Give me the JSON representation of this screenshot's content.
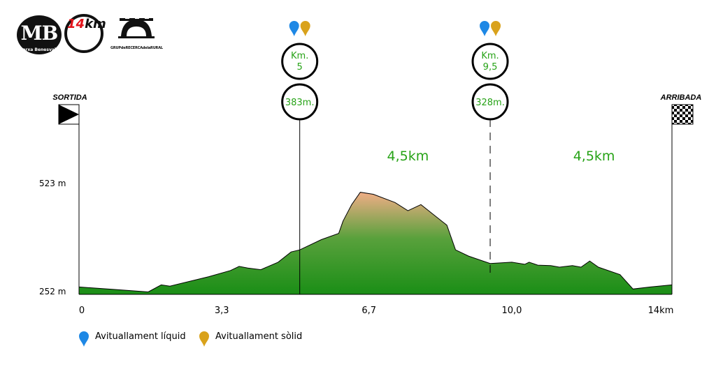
{
  "logos": {
    "mb_initials": "MB",
    "mb_subtitle": "Marxa Benesvalls",
    "km_number": "14",
    "km_unit": "km",
    "grup_text": "GRUPdeRECERCAdelaRURAL"
  },
  "markers": {
    "start_label": "SORTIDA",
    "finish_label": "ARRIBADA"
  },
  "aid_stations": [
    {
      "km_line1": "Km.",
      "km_line2": "5",
      "altitude": "383m.",
      "km": 5.1,
      "line": "solid"
    },
    {
      "km_line1": "Km.",
      "km_line2": "9,5",
      "altitude": "328m.",
      "km": 9.5,
      "line": "dashed"
    }
  ],
  "segment_labels": [
    {
      "text": "4,5km",
      "km": 7.6
    },
    {
      "text": "4,5km",
      "km": 11.9
    }
  ],
  "legend": [
    {
      "label": "Avituallament líquid",
      "color": "#1e88e5",
      "icon": "blue-pin-icon"
    },
    {
      "label": "Avituallament sòlid",
      "color": "#d9a21b",
      "icon": "gold-pin-icon"
    }
  ],
  "colors": {
    "fill_top": "#f0ad86",
    "fill_mid": "#59a13c",
    "fill_bottom": "#1a8e16",
    "text_green": "#27a317",
    "blue_pin": "#1e88e5",
    "gold_pin": "#d9a21b"
  },
  "chart_data": {
    "type": "area",
    "title": "",
    "xlabel": "",
    "ylabel": "",
    "x_tick_labels": [
      "0",
      "3,3",
      "6,7",
      "10,0",
      "14km"
    ],
    "x_tick_values": [
      0,
      3.3,
      6.7,
      10.0,
      13.7
    ],
    "y_tick_labels": [
      "523 m",
      "252 m"
    ],
    "y_tick_values": [
      523,
      252
    ],
    "xlim": [
      0,
      13.7
    ],
    "ylim": [
      252,
      523
    ],
    "grid": false,
    "series": [
      {
        "values": [
          [
            0,
            270
          ],
          [
            0.8,
            264
          ],
          [
            1.6,
            258
          ],
          [
            1.9,
            275
          ],
          [
            2.1,
            272
          ],
          [
            3.0,
            295
          ],
          [
            3.5,
            310
          ],
          [
            3.7,
            320
          ],
          [
            3.9,
            316
          ],
          [
            4.2,
            312
          ],
          [
            4.6,
            330
          ],
          [
            4.9,
            355
          ],
          [
            5.1,
            360
          ],
          [
            5.6,
            385
          ],
          [
            6.0,
            400
          ],
          [
            6.1,
            430
          ],
          [
            6.3,
            470
          ],
          [
            6.5,
            500
          ],
          [
            6.8,
            495
          ],
          [
            7.3,
            475
          ],
          [
            7.6,
            455
          ],
          [
            7.9,
            470
          ],
          [
            8.2,
            445
          ],
          [
            8.5,
            420
          ],
          [
            8.7,
            360
          ],
          [
            9.0,
            345
          ],
          [
            9.5,
            327
          ],
          [
            10.0,
            330
          ],
          [
            10.3,
            325
          ],
          [
            10.4,
            330
          ],
          [
            10.6,
            323
          ],
          [
            10.9,
            322
          ],
          [
            11.1,
            318
          ],
          [
            11.4,
            322
          ],
          [
            11.6,
            318
          ],
          [
            11.8,
            333
          ],
          [
            12.0,
            318
          ],
          [
            12.5,
            300
          ],
          [
            12.8,
            265
          ],
          [
            13.2,
            270
          ],
          [
            13.7,
            275
          ]
        ]
      }
    ]
  }
}
